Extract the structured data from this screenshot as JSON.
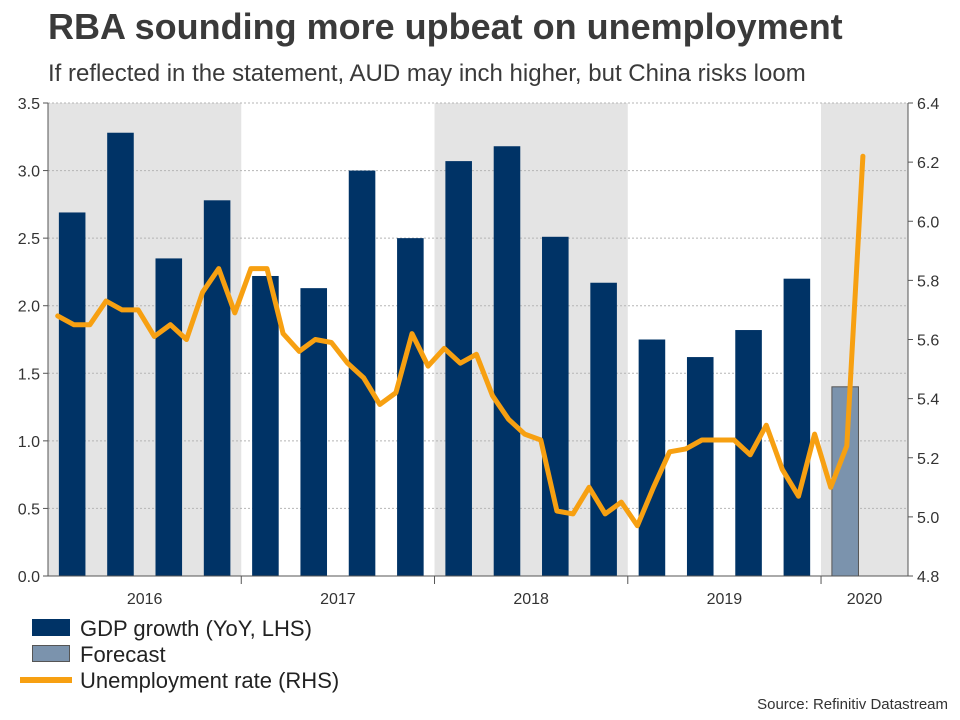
{
  "title": "RBA sounding more upbeat on unemployment",
  "subtitle": "If reflected in the statement, AUD may inch higher, but China risks loom",
  "source": "Source: Refinitiv Datastream",
  "colors": {
    "gdp": "#003366",
    "forecast": "#7b93ad",
    "unemployment": "#f7a011",
    "shade": "#e4e4e4"
  },
  "chart_data": {
    "type": "bar",
    "title": "RBA sounding more upbeat on unemployment",
    "year_labels": [
      "2016",
      "2017",
      "2018",
      "2019",
      "2020"
    ],
    "shaded_years": [
      "2016",
      "2018",
      "2020"
    ],
    "left_axis": {
      "min": 0.0,
      "max": 3.5,
      "ticks": [
        "0.0",
        "0.5",
        "1.0",
        "1.5",
        "2.0",
        "2.5",
        "3.0",
        "3.5"
      ]
    },
    "right_axis": {
      "min": 4.8,
      "max": 6.4,
      "ticks": [
        "4.8",
        "5.0",
        "5.2",
        "5.4",
        "5.6",
        "5.8",
        "6.0",
        "6.2",
        "6.4"
      ]
    },
    "series": [
      {
        "name": "GDP growth (YoY, LHS)",
        "kind": "bar",
        "axis": "left",
        "quarters": [
          "2016 Q1",
          "2016 Q2",
          "2016 Q3",
          "2016 Q4",
          "2017 Q1",
          "2017 Q2",
          "2017 Q3",
          "2017 Q4",
          "2018 Q1",
          "2018 Q2",
          "2018 Q3",
          "2018 Q4",
          "2019 Q1",
          "2019 Q2",
          "2019 Q3",
          "2019 Q4"
        ],
        "values": [
          2.69,
          3.28,
          2.35,
          2.78,
          2.22,
          2.13,
          3.0,
          2.5,
          3.07,
          3.18,
          2.51,
          2.17,
          1.75,
          1.62,
          1.82,
          2.2
        ]
      },
      {
        "name": "Forecast",
        "kind": "bar",
        "axis": "left",
        "quarters": [
          "2020 Q1"
        ],
        "values": [
          1.4
        ]
      },
      {
        "name": "Unemployment rate (RHS)",
        "kind": "line",
        "axis": "right",
        "values": [
          5.68,
          5.65,
          5.65,
          5.73,
          5.7,
          5.7,
          5.61,
          5.65,
          5.6,
          5.76,
          5.84,
          5.69,
          5.84,
          5.84,
          5.62,
          5.56,
          5.6,
          5.59,
          5.52,
          5.47,
          5.38,
          5.42,
          5.62,
          5.51,
          5.57,
          5.52,
          5.55,
          5.41,
          5.33,
          5.28,
          5.26,
          5.02,
          5.01,
          5.1,
          5.01,
          5.05,
          4.97,
          5.1,
          5.22,
          5.23,
          5.26,
          5.26,
          5.26,
          5.21,
          5.31,
          5.16,
          5.07,
          5.28,
          5.1,
          5.24,
          6.22
        ]
      }
    ]
  },
  "legend": [
    {
      "label": "GDP growth (YoY, LHS)",
      "kind": "bar",
      "color": "#003366"
    },
    {
      "label": "Forecast",
      "kind": "bar",
      "color": "#7b93ad"
    },
    {
      "label": "Unemployment rate (RHS)",
      "kind": "line",
      "color": "#f7a011"
    }
  ]
}
